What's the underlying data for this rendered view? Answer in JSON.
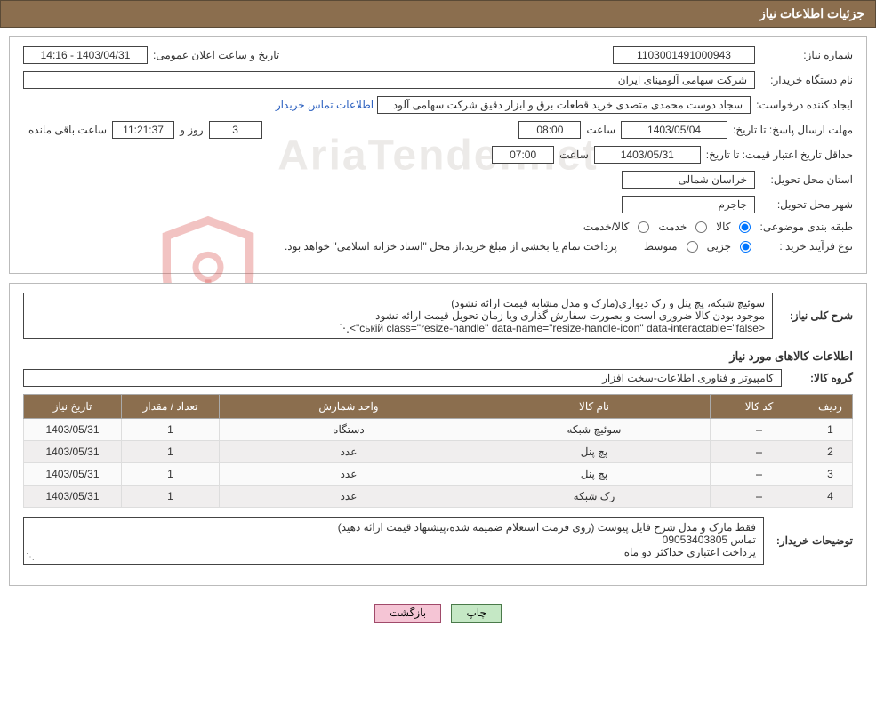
{
  "header": {
    "title": "جزئیات اطلاعات نیاز"
  },
  "watermark_text": "AriaTender.net",
  "need_number": {
    "label": "شماره نیاز:",
    "value": "1103001491000943"
  },
  "announce": {
    "label": "تاریخ و ساعت اعلان عمومی:",
    "value": "14:16 - 1403/04/31"
  },
  "buyer_org": {
    "label": "نام دستگاه خریدار:",
    "value": "شرکت سهامی آلومینای ایران"
  },
  "requester": {
    "label": "ایجاد کننده درخواست:",
    "value": "سجاد دوست محمدی متصدی خرید قطعات برق و ابزار دقیق شرکت سهامی آلود",
    "contact_link": "اطلاعات تماس خریدار"
  },
  "reply_deadline": {
    "label": "مهلت ارسال پاسخ: تا تاریخ:",
    "date": "1403/05/04",
    "time_label": "ساعت",
    "time": "08:00",
    "days_suffix": "روز و",
    "days": "3",
    "hours": "11:21:37",
    "remain_text": "ساعت باقی مانده"
  },
  "min_valid": {
    "label": "حداقل تاریخ اعتبار قیمت: تا تاریخ:",
    "date": "1403/05/31",
    "time_label": "ساعت",
    "time": "07:00"
  },
  "delivery_province": {
    "label": "استان محل تحویل:",
    "value": "خراسان شمالی"
  },
  "delivery_city": {
    "label": "شهر محل تحویل:",
    "value": "جاجرم"
  },
  "category": {
    "label": "طبقه بندی موضوعی:",
    "opt1": "کالا",
    "opt2": "خدمت",
    "opt3": "کالا/خدمت"
  },
  "purchase_type": {
    "label": "نوع فرآیند خرید :",
    "opt1": "جزیی",
    "opt2": "متوسط",
    "note": "پرداخت تمام یا بخشی از مبلغ خرید،از محل \"اسناد خزانه اسلامی\" خواهد بود."
  },
  "overall_desc": {
    "label": "شرح کلی نیاز:",
    "line1": "سوئیچ شبکه، پچ پنل و رک دیواری(مارک و مدل مشابه قیمت ارائه نشود)",
    "line2": "موجود بودن کالا ضروری است و بصورت سفارش گذاری ویا زمان تحویل قیمت ارائه نشود"
  },
  "goods_info_title": "اطلاعات کالاهای مورد نیاز",
  "goods_group": {
    "label": "گروه کالا:",
    "value": "کامپیوتر و فناوری اطلاعات-سخت افزار"
  },
  "table": {
    "columns": [
      "ردیف",
      "کد کالا",
      "نام کالا",
      "واحد شمارش",
      "تعداد / مقدار",
      "تاریخ نیاز"
    ],
    "rows": [
      [
        "1",
        "--",
        "سوئیچ شبکه",
        "دستگاه",
        "1",
        "1403/05/31"
      ],
      [
        "2",
        "--",
        "پچ پنل",
        "عدد",
        "1",
        "1403/05/31"
      ],
      [
        "3",
        "--",
        "پچ پنل",
        "عدد",
        "1",
        "1403/05/31"
      ],
      [
        "4",
        "--",
        "رک شبکه",
        "عدد",
        "1",
        "1403/05/31"
      ]
    ],
    "header_bg": "#8b6e4e",
    "header_color": "#ffffff",
    "row_even_bg": "#f0eeee",
    "row_odd_bg": "#fafafa"
  },
  "buyer_notes": {
    "label": "توضیحات خریدار:",
    "line1": "فقط مارک و مدل شرح فایل پیوست (روی فرمت استعلام ضمیمه شده،پیشنهاد قیمت ارائه دهید)",
    "line2": "تماس 09053403805",
    "line3": "پرداخت اعتباری حداکثر دو ماه"
  },
  "buttons": {
    "print": "چاپ",
    "back": "بازگشت"
  },
  "colors": {
    "header_bg": "#8b6e4e",
    "header_fg": "#ffffff",
    "link": "#2a5fbf",
    "btn_print_bg": "#c5e8c5",
    "btn_back_bg": "#f5c5d5",
    "shield": "#d9534f"
  }
}
